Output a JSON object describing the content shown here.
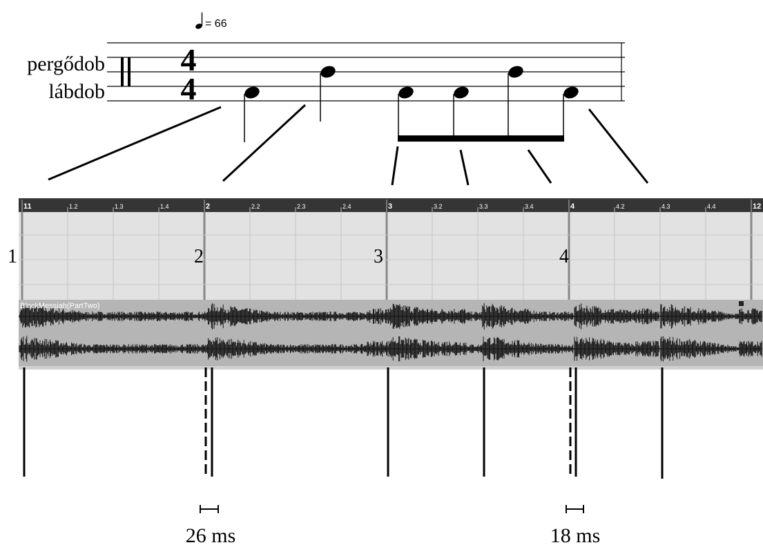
{
  "tempo": {
    "label": "= 66"
  },
  "staff": {
    "instruments": [
      "pergődob",
      "lábdob"
    ],
    "time_signature": [
      "4",
      "4"
    ]
  },
  "ruler": {
    "labels": [
      "11",
      "1.2",
      "1.3",
      "1.4",
      "2",
      "2.2",
      "2.3",
      "2.4",
      "3",
      "3.2",
      "3.3",
      "3.4",
      "4",
      "4.2",
      "4.3",
      "4.4",
      "12"
    ]
  },
  "beats": [
    "1",
    "2",
    "3",
    "4"
  ],
  "track": {
    "name": "BlackMessiah(PartTwo)"
  },
  "offsets": [
    "26 ms",
    "18 ms"
  ]
}
